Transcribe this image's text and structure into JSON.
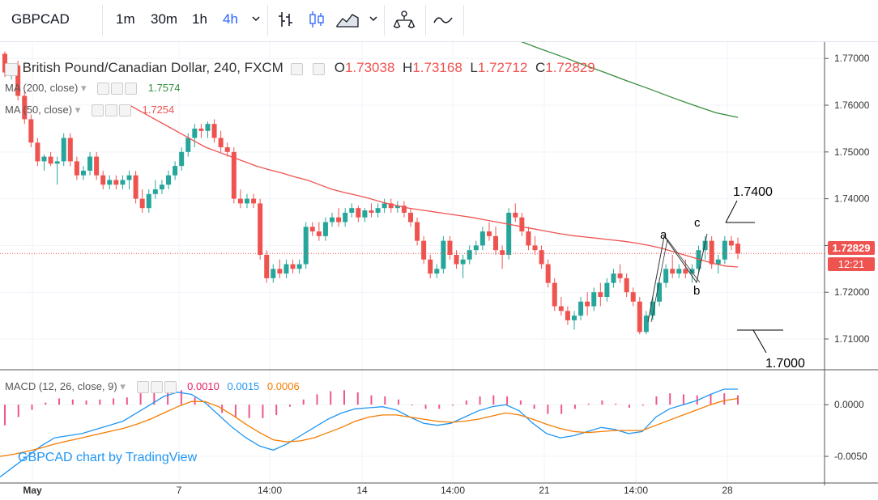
{
  "toolbar": {
    "symbol": "GBPCAD",
    "intervals": [
      {
        "label": "1m",
        "active": false
      },
      {
        "label": "30m",
        "active": false
      },
      {
        "label": "1h",
        "active": false
      },
      {
        "label": "4h",
        "active": true
      }
    ],
    "icons": [
      "chevron-down-icon",
      "bar-style-icon",
      "candle-style-icon",
      "area-style-icon",
      "chevron-down-icon",
      "indicators-icon",
      "compare-icon"
    ]
  },
  "legend": {
    "title": "British Pound/Canadian Dollar, 240, FXCM",
    "o_label": "O",
    "o_value": "1.73038",
    "h_label": "H",
    "h_value": "1.73168",
    "l_label": "L",
    "l_value": "1.72712",
    "c_label": "C",
    "c_value": "1.72829",
    "ma200_label": "MA (200, close)",
    "ma200_value": "1.7574",
    "ma50_label": "MA (50, close)",
    "ma50_value": "1.7254",
    "macd_label": "MACD (12, 26, close, 9)",
    "macd_hist": "0.0010",
    "macd_line": "0.0015",
    "macd_signal": "0.0006"
  },
  "price_tag": "1.72829",
  "time_tag": "12:21",
  "watermark": "GBPCAD chart by TradingView",
  "annotations": {
    "level_high": "1.7400",
    "level_low": "1.7000",
    "a": "a",
    "b": "b",
    "c": "c"
  },
  "colors": {
    "up": "#26a69a",
    "down": "#ef5350",
    "ma50": "#ef5350",
    "ma200": "#388e3c",
    "macd": "#2196f3",
    "signal": "#f57c00",
    "hist": "#e91e63"
  },
  "chart_data": {
    "type": "candlestick",
    "y_ticks": [
      "1.77000",
      "1.76000",
      "1.75000",
      "1.74000",
      "1.73000",
      "1.72000",
      "1.71000"
    ],
    "ylim": [
      1.7036,
      1.7735
    ],
    "macd_ticks": [
      "0.0000",
      "-0.0050"
    ],
    "macd_ylim": [
      -0.0075,
      0.0033
    ],
    "x_ticks": [
      "May",
      "7",
      "14:00",
      "14",
      "14:00",
      "21",
      "14:00",
      "28"
    ],
    "candles": [
      [
        1.771,
        1.7715,
        1.766,
        1.767
      ],
      [
        1.767,
        1.769,
        1.7655,
        1.7685
      ],
      [
        1.7685,
        1.7695,
        1.761,
        1.762
      ],
      [
        1.762,
        1.763,
        1.756,
        1.757
      ],
      [
        1.757,
        1.758,
        1.751,
        1.752
      ],
      [
        1.752,
        1.753,
        1.747,
        1.748
      ],
      [
        1.748,
        1.7495,
        1.746,
        1.749
      ],
      [
        1.749,
        1.75,
        1.747,
        1.7475
      ],
      [
        1.7475,
        1.749,
        1.743,
        1.748
      ],
      [
        1.748,
        1.754,
        1.747,
        1.753
      ],
      [
        1.753,
        1.754,
        1.747,
        1.748
      ],
      [
        1.748,
        1.749,
        1.744,
        1.745
      ],
      [
        1.745,
        1.747,
        1.744,
        1.746
      ],
      [
        1.746,
        1.75,
        1.745,
        1.749
      ],
      [
        1.749,
        1.75,
        1.744,
        1.745
      ],
      [
        1.745,
        1.746,
        1.742,
        1.743
      ],
      [
        1.743,
        1.745,
        1.742,
        1.744
      ],
      [
        1.744,
        1.745,
        1.742,
        1.743
      ],
      [
        1.743,
        1.745,
        1.742,
        1.744
      ],
      [
        1.744,
        1.746,
        1.742,
        1.745
      ],
      [
        1.745,
        1.746,
        1.739,
        1.74
      ],
      [
        1.74,
        1.742,
        1.737,
        1.738
      ],
      [
        1.738,
        1.742,
        1.737,
        1.741
      ],
      [
        1.741,
        1.744,
        1.74,
        1.742
      ],
      [
        1.742,
        1.744,
        1.741,
        1.743
      ],
      [
        1.743,
        1.746,
        1.742,
        1.745
      ],
      [
        1.745,
        1.748,
        1.744,
        1.747
      ],
      [
        1.747,
        1.751,
        1.746,
        1.75
      ],
      [
        1.75,
        1.754,
        1.749,
        1.753
      ],
      [
        1.753,
        1.756,
        1.751,
        1.755
      ],
      [
        1.755,
        1.756,
        1.753,
        1.7545
      ],
      [
        1.7545,
        1.7565,
        1.753,
        1.756
      ],
      [
        1.756,
        1.757,
        1.752,
        1.753
      ],
      [
        1.753,
        1.7545,
        1.75,
        1.751
      ],
      [
        1.751,
        1.752,
        1.749,
        1.75
      ],
      [
        1.75,
        1.751,
        1.739,
        1.74
      ],
      [
        1.74,
        1.742,
        1.738,
        1.739
      ],
      [
        1.739,
        1.741,
        1.738,
        1.74
      ],
      [
        1.74,
        1.741,
        1.738,
        1.739
      ],
      [
        1.739,
        1.74,
        1.727,
        1.728
      ],
      [
        1.728,
        1.729,
        1.722,
        1.723
      ],
      [
        1.723,
        1.726,
        1.722,
        1.725
      ],
      [
        1.725,
        1.727,
        1.723,
        1.724
      ],
      [
        1.724,
        1.727,
        1.723,
        1.726
      ],
      [
        1.726,
        1.727,
        1.724,
        1.725
      ],
      [
        1.725,
        1.727,
        1.724,
        1.726
      ],
      [
        1.726,
        1.735,
        1.725,
        1.734
      ],
      [
        1.734,
        1.735,
        1.732,
        1.733
      ],
      [
        1.733,
        1.735,
        1.731,
        1.732
      ],
      [
        1.732,
        1.736,
        1.731,
        1.735
      ],
      [
        1.735,
        1.737,
        1.734,
        1.736
      ],
      [
        1.736,
        1.738,
        1.734,
        1.735
      ],
      [
        1.735,
        1.738,
        1.734,
        1.737
      ],
      [
        1.737,
        1.739,
        1.736,
        1.738
      ],
      [
        1.738,
        1.7385,
        1.735,
        1.736
      ],
      [
        1.736,
        1.738,
        1.735,
        1.7375
      ],
      [
        1.7375,
        1.739,
        1.736,
        1.737
      ],
      [
        1.737,
        1.739,
        1.736,
        1.738
      ],
      [
        1.738,
        1.74,
        1.737,
        1.739
      ],
      [
        1.739,
        1.74,
        1.737,
        1.738
      ],
      [
        1.738,
        1.7395,
        1.737,
        1.7385
      ],
      [
        1.7385,
        1.7395,
        1.736,
        1.737
      ],
      [
        1.737,
        1.738,
        1.734,
        1.735
      ],
      [
        1.735,
        1.736,
        1.73,
        1.731
      ],
      [
        1.731,
        1.732,
        1.726,
        1.727
      ],
      [
        1.727,
        1.728,
        1.723,
        1.724
      ],
      [
        1.724,
        1.726,
        1.723,
        1.725
      ],
      [
        1.725,
        1.732,
        1.724,
        1.731
      ],
      [
        1.731,
        1.732,
        1.727,
        1.728
      ],
      [
        1.728,
        1.729,
        1.725,
        1.726
      ],
      [
        1.726,
        1.728,
        1.723,
        1.727
      ],
      [
        1.727,
        1.73,
        1.726,
        1.729
      ],
      [
        1.729,
        1.731,
        1.728,
        1.73
      ],
      [
        1.73,
        1.734,
        1.729,
        1.733
      ],
      [
        1.733,
        1.735,
        1.731,
        1.732
      ],
      [
        1.732,
        1.734,
        1.728,
        1.729
      ],
      [
        1.729,
        1.73,
        1.725,
        1.728
      ],
      [
        1.728,
        1.738,
        1.727,
        1.737
      ],
      [
        1.737,
        1.739,
        1.735,
        1.736
      ],
      [
        1.736,
        1.737,
        1.732,
        1.733
      ],
      [
        1.733,
        1.734,
        1.729,
        1.73
      ],
      [
        1.73,
        1.732,
        1.728,
        1.729
      ],
      [
        1.729,
        1.73,
        1.725,
        1.726
      ],
      [
        1.726,
        1.727,
        1.721,
        1.722
      ],
      [
        1.722,
        1.723,
        1.716,
        1.717
      ],
      [
        1.717,
        1.719,
        1.715,
        1.716
      ],
      [
        1.716,
        1.717,
        1.713,
        1.714
      ],
      [
        1.714,
        1.716,
        1.712,
        1.715
      ],
      [
        1.715,
        1.719,
        1.714,
        1.718
      ],
      [
        1.718,
        1.72,
        1.715,
        1.717
      ],
      [
        1.717,
        1.721,
        1.716,
        1.72
      ],
      [
        1.72,
        1.722,
        1.717,
        1.719
      ],
      [
        1.719,
        1.723,
        1.718,
        1.722
      ],
      [
        1.722,
        1.725,
        1.721,
        1.724
      ],
      [
        1.724,
        1.726,
        1.722,
        1.723
      ],
      [
        1.723,
        1.724,
        1.719,
        1.72
      ],
      [
        1.72,
        1.721,
        1.717,
        1.718
      ],
      [
        1.718,
        1.719,
        1.711,
        1.7115
      ],
      [
        1.7115,
        1.716,
        1.711,
        1.715
      ],
      [
        1.715,
        1.719,
        1.714,
        1.718
      ],
      [
        1.718,
        1.723,
        1.717,
        1.722
      ],
      [
        1.722,
        1.726,
        1.721,
        1.725
      ],
      [
        1.725,
        1.728,
        1.723,
        1.724
      ],
      [
        1.724,
        1.726,
        1.723,
        1.725
      ],
      [
        1.725,
        1.727,
        1.723,
        1.724
      ],
      [
        1.724,
        1.726,
        1.722,
        1.725
      ],
      [
        1.725,
        1.73,
        1.724,
        1.729
      ],
      [
        1.729,
        1.732,
        1.727,
        1.731
      ],
      [
        1.731,
        1.732,
        1.725,
        1.726
      ],
      [
        1.726,
        1.728,
        1.724,
        1.727
      ],
      [
        1.727,
        1.732,
        1.726,
        1.731
      ],
      [
        1.731,
        1.732,
        1.729,
        1.73
      ],
      [
        1.7304,
        1.7317,
        1.7271,
        1.7283
      ]
    ],
    "ma50": [
      1.76,
      1.7585,
      1.757,
      1.7555,
      1.754,
      1.7525,
      1.751,
      1.75,
      1.749,
      1.748,
      1.747,
      1.7462,
      1.7455,
      1.7447,
      1.744,
      1.743,
      1.742,
      1.7413,
      1.7407,
      1.74,
      1.7392,
      1.7386,
      1.738,
      1.7376,
      1.7372,
      1.7368,
      1.7364,
      1.736,
      1.7355,
      1.735,
      1.7345,
      1.734,
      1.7335,
      1.733,
      1.7325,
      1.7321,
      1.7318,
      1.7315,
      1.7312,
      1.7309,
      1.7305,
      1.73,
      1.7294,
      1.7286,
      1.7278,
      1.727,
      1.7262,
      1.7256,
      1.7254
    ],
    "ma200": [
      1.7757,
      1.774,
      1.7722,
      1.7705,
      1.7687,
      1.767,
      1.7652,
      1.7635,
      1.7617,
      1.76,
      1.7584,
      1.7574
    ],
    "macd": [
      -0.007,
      -0.006,
      -0.005,
      -0.004,
      -0.0032,
      -0.003,
      -0.0028,
      -0.0024,
      -0.002,
      -0.0016,
      -0.0008,
      0.0,
      0.0008,
      0.0012,
      0.001,
      0.0002,
      -0.001,
      -0.0022,
      -0.0032,
      -0.004,
      -0.0044,
      -0.0038,
      -0.003,
      -0.0022,
      -0.0014,
      -0.0008,
      -0.0004,
      -0.0003,
      -0.0002,
      -0.0005,
      -0.0012,
      -0.0018,
      -0.002,
      -0.0018,
      -0.0012,
      -0.0006,
      -0.0002,
      0.0,
      -0.0006,
      -0.0018,
      -0.0028,
      -0.0032,
      -0.003,
      -0.0026,
      -0.0022,
      -0.0024,
      -0.0028,
      -0.0026,
      -0.0012,
      -0.0004,
      0.0,
      0.0004,
      0.001,
      0.0015,
      0.0015
    ],
    "signal": [
      -0.005,
      -0.0048,
      -0.0045,
      -0.0042,
      -0.0038,
      -0.0035,
      -0.0032,
      -0.0029,
      -0.0026,
      -0.0023,
      -0.0019,
      -0.0014,
      -0.0008,
      -0.0002,
      0.0003,
      0.0003,
      -0.0002,
      -0.001,
      -0.0019,
      -0.0027,
      -0.0034,
      -0.0036,
      -0.0035,
      -0.0032,
      -0.0027,
      -0.0022,
      -0.0016,
      -0.0012,
      -0.001,
      -0.001,
      -0.0012,
      -0.0014,
      -0.0016,
      -0.0017,
      -0.0016,
      -0.0014,
      -0.0011,
      -0.0008,
      -0.001,
      -0.0014,
      -0.0019,
      -0.0023,
      -0.0026,
      -0.0027,
      -0.0026,
      -0.0025,
      -0.0025,
      -0.0025,
      -0.002,
      -0.0015,
      -0.001,
      -0.0005,
      0.0,
      0.0004,
      0.0006
    ]
  }
}
